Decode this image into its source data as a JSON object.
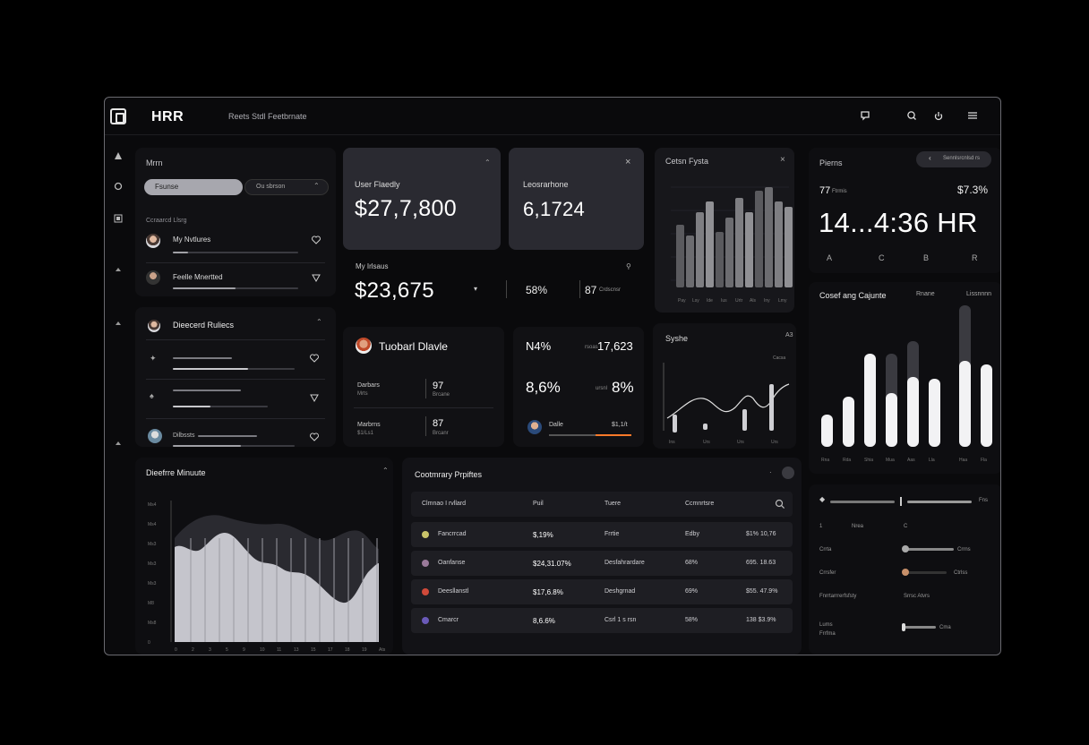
{
  "app": {
    "brand": "HRR",
    "subtitle": "Reets Stdl Feetbrnate"
  },
  "topbar_icons": [
    "message-icon",
    "search-icon",
    "power-icon",
    "menu-icon"
  ],
  "sidebar_icons": [
    "triangle-icon",
    "circle-icon",
    "grid-icon",
    "spade-icon",
    "diamond-icon",
    "flag-icon"
  ],
  "panel_members": {
    "title": "Mrrn",
    "toggle_active": "Fsunse",
    "toggle_inactive": "Ou sbrson",
    "section_label": "Ccraarcd Llsrg",
    "items": [
      {
        "name": "My Nvtlures",
        "progress": 0.12
      },
      {
        "name": "Feelle Mnertted",
        "progress": 0.5
      }
    ]
  },
  "card_revenue": {
    "label": "User Flaedly",
    "value": "$27,7,800"
  },
  "card_count": {
    "label": "Leosrarhone",
    "value": "6,1724"
  },
  "card_summary": {
    "label": "My Irlsaus",
    "value": "$23,675",
    "stat1": "58%",
    "stat2": "87",
    "stat2_unit": "Crdscnsr"
  },
  "chart_top": {
    "title": "Cetsn Fysta",
    "x_labels": [
      "Pay",
      "Lsy",
      "Ide",
      "Ius",
      "Urtr",
      "Als",
      "Iny",
      "Lmy"
    ]
  },
  "panel_time": {
    "title": "Pierns",
    "button": "Sennlsrcnlsd rs",
    "left_top": "77",
    "left_top_sub": "Ftrmis",
    "right_top": "$7.3%",
    "big": "14...4:36 HR",
    "tabs": [
      "A",
      "C",
      "B",
      "R"
    ]
  },
  "panel_discovery": {
    "title": "Dieecerd Ruliecs",
    "rows": [
      {
        "label": "",
        "progress": 0.62
      },
      {
        "label": "",
        "progress": 0.4
      },
      {
        "label": "Dilbssts",
        "progress": 0.56
      }
    ]
  },
  "panel_person": {
    "name": "Tuobarl Dlavle",
    "rows": [
      {
        "label": "Darbars",
        "sub": "Mrts",
        "value": "97",
        "value_sub": "Brcane"
      },
      {
        "label": "Marbrns",
        "sub": "$1/Ls1",
        "value": "87",
        "value_sub": "Brcanr"
      }
    ]
  },
  "panel_metrics": {
    "m1": "N4%",
    "m1_label": "rsoas",
    "m2": "17,623",
    "m3": "8,6%",
    "m4_label": "ursnl",
    "m4": "8%",
    "foot_name": "Dalle",
    "foot_value": "$1,1/t"
  },
  "chart_mid": {
    "title": "Syshe",
    "corner": "A3",
    "legend": "Cacsa",
    "x_labels": [
      "Ins",
      "Urs",
      "Urs",
      "Urs"
    ]
  },
  "chart_right": {
    "title": "Cosef ang Cajunte",
    "legend1": "Rnane",
    "legend2": "Lissnnnn",
    "x_labels": [
      "Rna",
      "Rda",
      "Shia",
      "Mua",
      "Aas",
      "Lla",
      "Haa",
      "Fla"
    ]
  },
  "chart_area": {
    "title": "Dieefrre Minuute",
    "y_labels": [
      "Ms4",
      "Ms4",
      "Ms3",
      "Ms3",
      "Ms3",
      "M8",
      "Ms8",
      "0"
    ],
    "x_labels": [
      "0",
      "2",
      "3",
      "5",
      "9",
      "10",
      "11",
      "13",
      "15",
      "17",
      "18",
      "19",
      "Ats"
    ]
  },
  "table": {
    "title": "Cootmrary Prpiftes",
    "headers": [
      "Clmnao I rvllard",
      "Puil",
      "Tuere",
      "Ccmnrtsre"
    ],
    "rows": [
      {
        "dot": "#c9c36a",
        "name": "Fancrrcad",
        "c1": "$,19%",
        "c2": "Frrtie",
        "c3": "Edby",
        "c4": "$1% 10,76"
      },
      {
        "dot": "#9a7a9a",
        "name": "Oanfanse",
        "c1": "$24,31.07%",
        "c2": "Desfahrardare",
        "c3": "68%",
        "c4": "695. 18.63"
      },
      {
        "dot": "#d04a3a",
        "name": "Deesllanstl",
        "c1": "$17,6.8%",
        "c2": "Deshgrnad",
        "c3": "69%",
        "c4": "$55. 47.9%"
      },
      {
        "dot": "#6a5ab8",
        "name": "Cmarcr",
        "c1": "8,6.6%",
        "c2": "Csrl 1 s rsn",
        "c3": "58%",
        "c4": "138 $3.9%"
      }
    ]
  },
  "panel_settings": {
    "rows": [
      {
        "label": "",
        "value": "Fns"
      },
      {
        "label": "Nrea",
        "value": "C"
      },
      {
        "label": "Crrta",
        "value": "Crrns"
      },
      {
        "label": "Crrsfer",
        "value": "Ctrlss"
      },
      {
        "label": "Fnrrtarrrerfsfsty",
        "value": "Srrsc  Atvrs"
      },
      {
        "label": "Lums\nFrrfma",
        "value": "Cma"
      }
    ]
  }
}
